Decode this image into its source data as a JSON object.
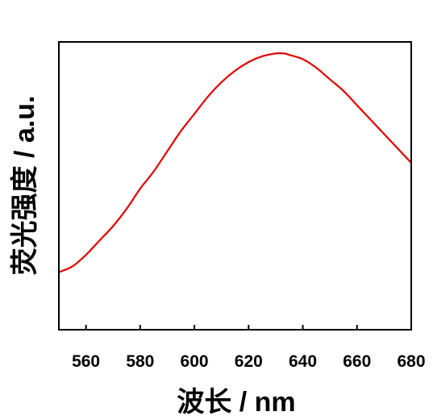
{
  "chart_data": {
    "type": "line",
    "title": "",
    "xlabel": "波长 / nm",
    "ylabel": "荧光强度 / a.u.",
    "xlim": [
      550,
      680
    ],
    "ylim": [
      0,
      1
    ],
    "x_ticks": [
      560,
      580,
      600,
      620,
      640,
      660,
      680
    ],
    "y_ticks": [],
    "grid": false,
    "legend": "none",
    "series": [
      {
        "color": "#e00000",
        "x": [
          550,
          555,
          560,
          565,
          570,
          575,
          580,
          585,
          590,
          595,
          600,
          605,
          610,
          615,
          620,
          625,
          630,
          633,
          635,
          640,
          645,
          650,
          655,
          660,
          665,
          670,
          675,
          680
        ],
        "y": [
          0.2,
          0.22,
          0.26,
          0.31,
          0.36,
          0.42,
          0.49,
          0.55,
          0.62,
          0.69,
          0.75,
          0.81,
          0.86,
          0.9,
          0.93,
          0.95,
          0.96,
          0.96,
          0.955,
          0.94,
          0.91,
          0.87,
          0.83,
          0.78,
          0.73,
          0.68,
          0.63,
          0.58
        ]
      }
    ]
  }
}
